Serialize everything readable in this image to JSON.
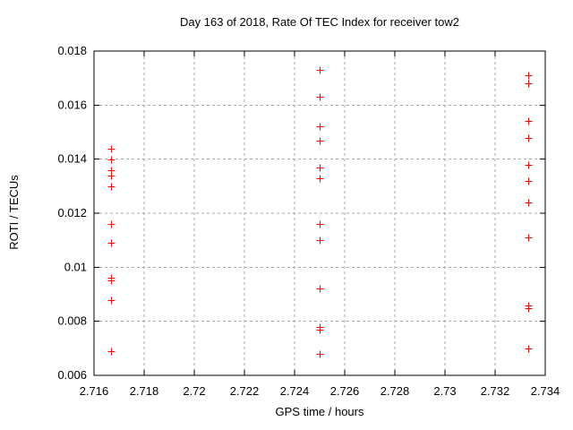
{
  "chart_data": {
    "type": "scatter",
    "title": "Day 163 of 2018, Rate Of TEC Index for receiver tow2",
    "xlabel": "GPS time / hours",
    "ylabel": "ROTI / TECUs",
    "xlim": [
      2.716,
      2.734
    ],
    "ylim": [
      0.006,
      0.018
    ],
    "xtick_labels": [
      "2.716",
      "2.718",
      "2.72",
      "2.722",
      "2.724",
      "2.726",
      "2.728",
      "2.73",
      "2.732",
      "2.734"
    ],
    "ytick_labels": [
      "0.006",
      "0.008",
      "0.01",
      "0.012",
      "0.014",
      "0.016",
      "0.018"
    ],
    "grid": true,
    "legend": "none",
    "marker": "plus",
    "colors": {
      "marker": "#ff0000",
      "grid": "#aaaaaa",
      "axis": "#000000",
      "text": "#000000",
      "background": "#ffffff"
    },
    "series": [
      {
        "name": "ROTI",
        "points": [
          [
            2.71667,
            0.0144
          ],
          [
            2.71667,
            0.014
          ],
          [
            2.71667,
            0.0136
          ],
          [
            2.71667,
            0.0134
          ],
          [
            2.71667,
            0.013
          ],
          [
            2.71667,
            0.0116
          ],
          [
            2.71667,
            0.0109
          ],
          [
            2.71667,
            0.0096
          ],
          [
            2.71667,
            0.0095
          ],
          [
            2.71667,
            0.0088
          ],
          [
            2.71667,
            0.0069
          ],
          [
            2.725,
            0.0173
          ],
          [
            2.725,
            0.0163
          ],
          [
            2.725,
            0.0152
          ],
          [
            2.725,
            0.0147
          ],
          [
            2.725,
            0.0137
          ],
          [
            2.725,
            0.0133
          ],
          [
            2.725,
            0.0116
          ],
          [
            2.725,
            0.011
          ],
          [
            2.725,
            0.0092
          ],
          [
            2.725,
            0.0078
          ],
          [
            2.725,
            0.0077
          ],
          [
            2.725,
            0.0068
          ],
          [
            2.73333,
            0.0171
          ],
          [
            2.73333,
            0.0168
          ],
          [
            2.73333,
            0.0154
          ],
          [
            2.73333,
            0.0148
          ],
          [
            2.73333,
            0.0138
          ],
          [
            2.73333,
            0.0132
          ],
          [
            2.73333,
            0.0124
          ],
          [
            2.73333,
            0.0111
          ],
          [
            2.73333,
            0.0086
          ],
          [
            2.73333,
            0.0085
          ],
          [
            2.73333,
            0.007
          ]
        ]
      }
    ]
  }
}
